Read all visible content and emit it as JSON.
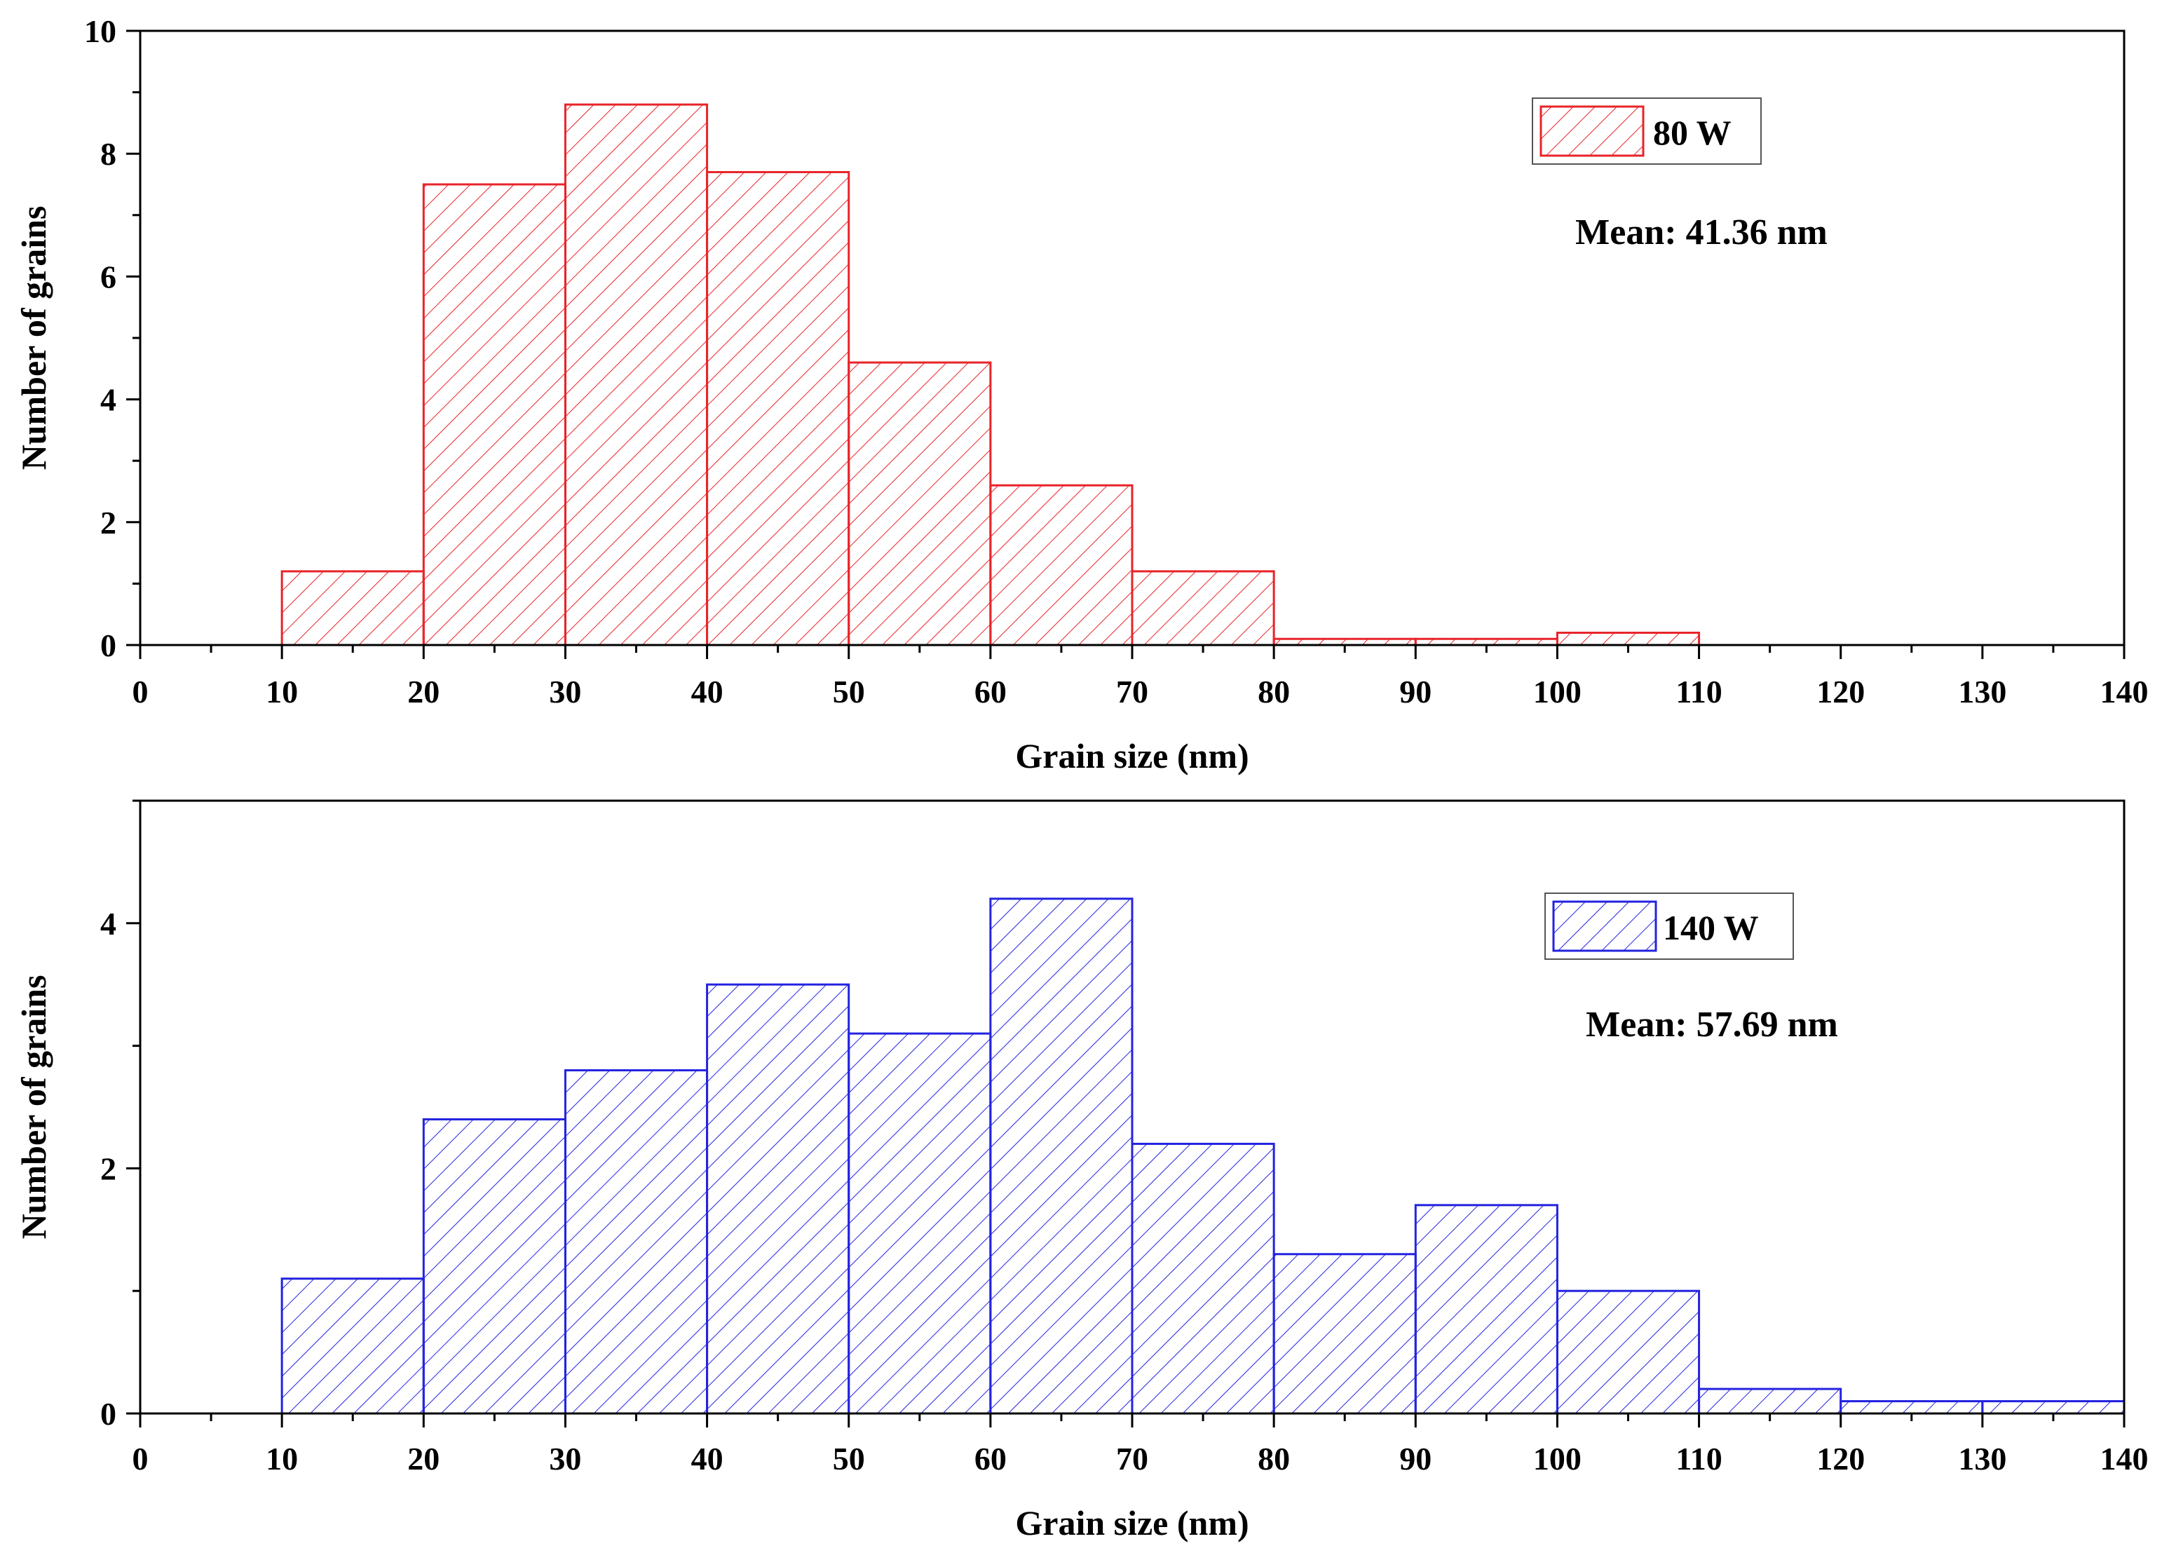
{
  "chart_data": [
    {
      "type": "bar",
      "title": "",
      "xlabel": "Grain size (nm)",
      "ylabel": "Number of grains",
      "xlim": [
        0,
        140
      ],
      "ylim": [
        0,
        10
      ],
      "x_ticks": [
        0,
        10,
        20,
        30,
        40,
        50,
        60,
        70,
        80,
        90,
        100,
        110,
        120,
        130,
        140
      ],
      "y_ticks": [
        0,
        2,
        4,
        6,
        8,
        10
      ],
      "y_minor_step": 1,
      "bin_edges": [
        10,
        20,
        30,
        40,
        50,
        60,
        70,
        80,
        90,
        100,
        110
      ],
      "values": [
        1.2,
        7.5,
        8.8,
        7.7,
        4.6,
        2.6,
        1.2,
        0.1,
        0.1,
        0.2
      ],
      "legend": {
        "label": "80 W",
        "position": "top-right"
      },
      "annotation": "Mean: 41.36 nm",
      "color": "#e8242a",
      "pattern": "diagonal-hatch",
      "grid": false
    },
    {
      "type": "bar",
      "title": "",
      "xlabel": "Grain size (nm)",
      "ylabel": "Number of grains",
      "xlim": [
        0,
        140
      ],
      "ylim": [
        0,
        5
      ],
      "x_ticks": [
        0,
        10,
        20,
        30,
        40,
        50,
        60,
        70,
        80,
        90,
        100,
        110,
        120,
        130,
        140
      ],
      "y_ticks": [
        0,
        2,
        4
      ],
      "y_minor_step": 1,
      "bin_edges": [
        10,
        20,
        30,
        40,
        50,
        60,
        70,
        80,
        90,
        100,
        110,
        120,
        130,
        140
      ],
      "values": [
        1.1,
        2.4,
        2.8,
        3.5,
        3.1,
        4.2,
        2.2,
        1.3,
        1.7,
        1.0,
        0.2,
        0.1,
        0.1
      ],
      "legend": {
        "label": "140 W",
        "position": "top-right"
      },
      "annotation": "Mean: 57.69 nm",
      "color": "#2323e0",
      "pattern": "diagonal-hatch",
      "grid": false
    }
  ]
}
